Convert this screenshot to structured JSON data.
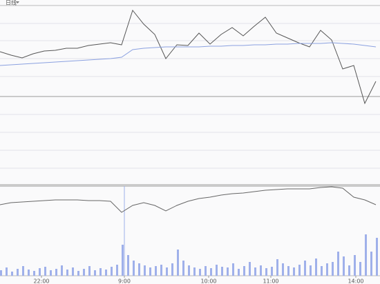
{
  "toolbar": {
    "label": "日线"
  },
  "chart_data": [
    {
      "type": "line",
      "x": [
        0,
        16,
        32,
        48,
        64,
        80,
        96,
        112,
        128,
        144,
        160,
        176,
        192,
        208,
        224,
        240,
        256,
        272,
        288,
        304,
        320,
        336,
        352,
        368,
        384,
        400,
        416,
        432,
        448,
        464,
        480,
        496,
        512,
        528,
        544
      ],
      "xlim": [
        0,
        550
      ],
      "ylim": [
        0,
        132
      ],
      "yticks": [
        29,
        55,
        81,
        106
      ],
      "grid": true,
      "series": [
        {
          "name": "price",
          "color": "#555555",
          "values": [
            65,
            60,
            56,
            62,
            66,
            67,
            70,
            70,
            74,
            76,
            78,
            75,
            125,
            105,
            90,
            55,
            75,
            74,
            92,
            76,
            90,
            100,
            88,
            102,
            115,
            92,
            85,
            78,
            72,
            96,
            82,
            40,
            45,
            -10,
            22
          ]
        },
        {
          "name": "average",
          "color": "#8aa0e0",
          "values": [
            45,
            46,
            47,
            48,
            49,
            50,
            51,
            52,
            53,
            54,
            55,
            57,
            68,
            70,
            71,
            72,
            72,
            72,
            72,
            73,
            73,
            74,
            74,
            75,
            75,
            76,
            76,
            77,
            77,
            77,
            78,
            77,
            76,
            74,
            72
          ]
        }
      ]
    },
    {
      "type": "line",
      "x": [
        0,
        16,
        32,
        48,
        64,
        80,
        96,
        112,
        128,
        144,
        160,
        176,
        192,
        208,
        224,
        240,
        256,
        272,
        288,
        304,
        320,
        336,
        352,
        368,
        384,
        400,
        416,
        432,
        448,
        464,
        480,
        496,
        512,
        528,
        544
      ],
      "xlim": [
        0,
        550
      ],
      "ylim": [
        0,
        40
      ],
      "grid": true,
      "series": [
        {
          "name": "indicator",
          "color": "#666666",
          "values": [
            13,
            16,
            17,
            18,
            19,
            20,
            20,
            20,
            19,
            19,
            18,
            2,
            12,
            16,
            12,
            4,
            12,
            18,
            22,
            24,
            27,
            29,
            30,
            32,
            34,
            35,
            36,
            36,
            36,
            38,
            39,
            37,
            24,
            20,
            13
          ]
        }
      ]
    },
    {
      "type": "bar",
      "x": [
        0,
        8,
        16,
        24,
        32,
        40,
        48,
        56,
        64,
        72,
        80,
        88,
        96,
        104,
        112,
        120,
        128,
        136,
        144,
        152,
        160,
        168,
        176,
        184,
        192,
        200,
        208,
        216,
        224,
        232,
        240,
        248,
        256,
        264,
        272,
        280,
        288,
        296,
        304,
        312,
        320,
        328,
        336,
        344,
        352,
        360,
        368,
        376,
        384,
        392,
        400,
        408,
        416,
        424,
        432,
        440,
        448,
        456,
        464,
        472,
        480,
        488,
        496,
        504,
        512,
        520,
        528,
        536,
        544
      ],
      "values": [
        8,
        12,
        6,
        10,
        14,
        9,
        7,
        11,
        13,
        8,
        10,
        15,
        9,
        12,
        7,
        10,
        14,
        8,
        11,
        9,
        13,
        16,
        45,
        30,
        22,
        18,
        15,
        12,
        14,
        16,
        12,
        18,
        38,
        22,
        15,
        12,
        10,
        14,
        11,
        16,
        13,
        12,
        18,
        10,
        14,
        20,
        12,
        15,
        11,
        13,
        24,
        18,
        14,
        12,
        16,
        22,
        15,
        25,
        14,
        18,
        20,
        35,
        28,
        15,
        30,
        20,
        60,
        35,
        55
      ],
      "color": "#9fb0ea",
      "xlim": [
        0,
        550
      ],
      "ylim": [
        0,
        60
      ],
      "xticks": [
        {
          "value": 60,
          "label": "22:00"
        },
        {
          "value": 180,
          "label": "9:00"
        },
        {
          "value": 302,
          "label": "10:00"
        },
        {
          "value": 392,
          "label": "11:00"
        },
        {
          "value": 515,
          "label": "14:00"
        }
      ]
    }
  ]
}
